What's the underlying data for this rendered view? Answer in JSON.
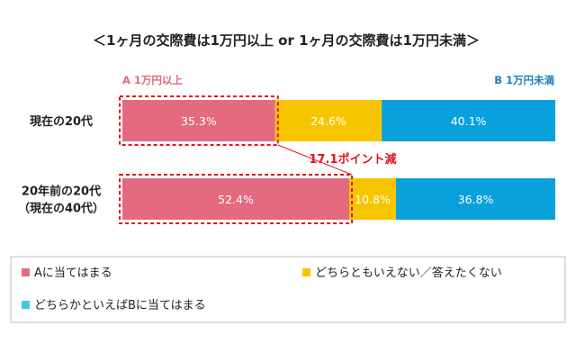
{
  "chart_data": {
    "type": "bar",
    "orientation": "horizontal",
    "stacked": true,
    "title": "＜1ヶ月の交際費は1万円以上 or 1ヶ月の交際費は1万円未満＞",
    "side_labels": {
      "a": "A 1万円以上",
      "b": "B 1万円未満"
    },
    "categories": [
      {
        "lines": [
          "現在の20代"
        ]
      },
      {
        "lines": [
          "20年前の20代",
          "（現在の40代）"
        ]
      }
    ],
    "series": [
      {
        "name": "Aに当てはまる",
        "color": "#e46a7f",
        "values": [
          35.3,
          52.4
        ],
        "labels": [
          "35.3%",
          "52.4%"
        ]
      },
      {
        "name": "どちらともいえない／答えたくない",
        "color": "#f7c500",
        "values": [
          24.6,
          10.8
        ],
        "labels": [
          "24.6%",
          "10.8%"
        ]
      },
      {
        "name": "どちらかといえばBに当てはまる",
        "color": "#0aa0dc",
        "values": [
          40.1,
          36.8
        ],
        "labels": [
          "40.1%",
          "36.8%"
        ]
      }
    ],
    "xlim": [
      0,
      100
    ],
    "annotation": "17.1ポイント減",
    "legend_position": "bottom",
    "legend_colors": [
      "#e46a7f",
      "#f7c500",
      "#3dc8ec"
    ]
  }
}
